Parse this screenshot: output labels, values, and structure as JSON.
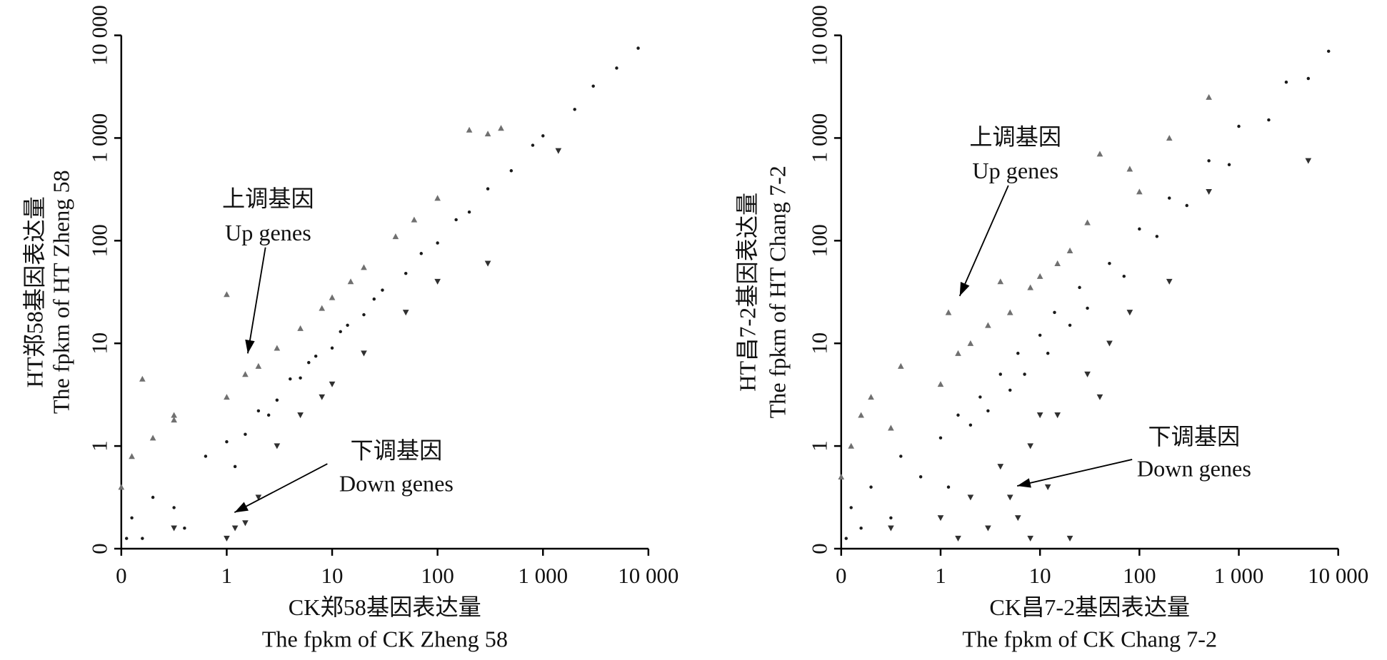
{
  "chart_data": [
    {
      "type": "scatter",
      "xscale": "symlog",
      "yscale": "symlog",
      "xlabel": [
        "CK郑58基因表达量",
        "The fpkm of CK Zheng 58"
      ],
      "ylabel": [
        "HT郑58基因表达量",
        "The fpkm of HT Zheng 58"
      ],
      "annotations": [
        [
          "上调基因",
          "Up genes"
        ],
        [
          "下调基因",
          "Down genes"
        ]
      ],
      "xlim": [
        0,
        10000
      ],
      "ylim": [
        0,
        10000
      ],
      "xticks": [
        0,
        1,
        10,
        100,
        {
          "value": 1000,
          "label": "1 000"
        },
        {
          "value": 10000,
          "label": "10 000"
        }
      ],
      "yticks": [
        0,
        1,
        10,
        100,
        {
          "value": 1000,
          "label": "1 000"
        },
        {
          "value": 10000,
          "label": "10 000"
        }
      ],
      "series": [
        {
          "color": "#1a1a1a",
          "marker": "dot",
          "x": [
            0.05,
            0.1,
            0.2,
            0.3,
            0.5,
            0.6,
            0.8,
            1,
            1.2,
            1.5,
            2,
            2.5,
            3,
            4,
            5,
            6,
            7,
            10,
            12,
            14,
            20,
            25,
            30,
            50,
            70,
            100,
            150,
            200,
            300,
            500,
            800,
            1000,
            2000,
            3000,
            5000,
            8000
          ],
          "values": [
            0.1,
            0.3,
            0.1,
            0.5,
            0.4,
            0.2,
            0.9,
            1.1,
            0.8,
            1.3,
            2.2,
            2,
            2.8,
            4.5,
            4.6,
            6.5,
            7.5,
            9,
            13,
            15,
            19,
            27,
            33,
            48,
            75,
            95,
            160,
            190,
            320,
            480,
            850,
            1050,
            1900,
            3200,
            4800,
            7500
          ]
        },
        {
          "color": "#707070",
          "marker": "up",
          "x": [
            0,
            0.1,
            0.2,
            0.3,
            0.5,
            0.5,
            1,
            1,
            1.5,
            2,
            3,
            5,
            8,
            10,
            15,
            20,
            40,
            60,
            100,
            200,
            300,
            400
          ],
          "values": [
            0.6,
            0.9,
            4.5,
            1.2,
            1.8,
            2,
            3,
            30,
            5,
            6,
            9,
            14,
            22,
            28,
            40,
            55,
            110,
            160,
            260,
            1200,
            1100,
            1250
          ]
        },
        {
          "color": "#303030",
          "marker": "down",
          "x": [
            0.5,
            1,
            1.2,
            1.5,
            2,
            3,
            5,
            8,
            10,
            20,
            50,
            100,
            300,
            1400
          ],
          "values": [
            0.2,
            0.1,
            0.2,
            0.25,
            0.5,
            1,
            2,
            3,
            4,
            8,
            20,
            40,
            60,
            750
          ]
        }
      ]
    },
    {
      "type": "scatter",
      "xscale": "symlog",
      "yscale": "symlog",
      "xlabel": [
        "CK昌7-2基因表达量",
        "The fpkm of CK Chang 7-2"
      ],
      "ylabel": [
        "HT昌7-2基因表达量",
        "The fpkm of HT Chang 7-2"
      ],
      "annotations": [
        [
          "上调基因",
          "Up genes"
        ],
        [
          "下调基因",
          "Down genes"
        ]
      ],
      "xlim": [
        0,
        10000
      ],
      "ylim": [
        0,
        10000
      ],
      "xticks": [
        0,
        1,
        10,
        100,
        {
          "value": 1000,
          "label": "1 000"
        },
        {
          "value": 10000,
          "label": "10 000"
        }
      ],
      "yticks": [
        0,
        1,
        10,
        100,
        {
          "value": 1000,
          "label": "1 000"
        },
        {
          "value": 10000,
          "label": "10 000"
        }
      ],
      "series": [
        {
          "color": "#1a1a1a",
          "marker": "dot",
          "x": [
            0.05,
            0.1,
            0.2,
            0.3,
            0.5,
            0.6,
            0.8,
            1,
            1.2,
            1.5,
            2,
            2.5,
            3,
            4,
            5,
            6,
            7,
            10,
            12,
            14,
            20,
            25,
            30,
            50,
            70,
            100,
            150,
            200,
            300,
            500,
            800,
            1000,
            2000,
            3000,
            5000,
            8000
          ],
          "values": [
            0.1,
            0.4,
            0.2,
            0.6,
            0.3,
            0.9,
            0.7,
            1.2,
            0.6,
            2,
            1.6,
            3,
            2.2,
            5,
            3.5,
            8,
            5,
            12,
            8,
            20,
            15,
            35,
            22,
            60,
            45,
            130,
            110,
            260,
            220,
            600,
            550,
            1300,
            1500,
            3500,
            3800,
            7000
          ]
        },
        {
          "color": "#707070",
          "marker": "up",
          "x": [
            0,
            0.1,
            0.2,
            0.3,
            0.5,
            0.6,
            1,
            1.2,
            1.5,
            2,
            3,
            4,
            5,
            8,
            10,
            15,
            20,
            30,
            40,
            80,
            100,
            200,
            500
          ],
          "values": [
            0.7,
            1,
            2,
            3,
            1.5,
            6,
            4,
            20,
            8,
            10,
            15,
            40,
            20,
            35,
            45,
            60,
            80,
            150,
            700,
            500,
            300,
            1000,
            2500
          ]
        },
        {
          "color": "#303030",
          "marker": "down",
          "x": [
            0.5,
            1,
            1.5,
            2,
            3,
            4,
            5,
            6,
            8,
            8,
            10,
            12,
            15,
            20,
            30,
            40,
            50,
            80,
            200,
            500,
            5000
          ],
          "values": [
            0.2,
            0.3,
            0.1,
            0.5,
            0.2,
            0.8,
            0.5,
            0.3,
            1,
            0.1,
            2,
            0.6,
            2,
            0.1,
            5,
            3,
            10,
            20,
            40,
            300,
            600
          ]
        }
      ]
    }
  ]
}
